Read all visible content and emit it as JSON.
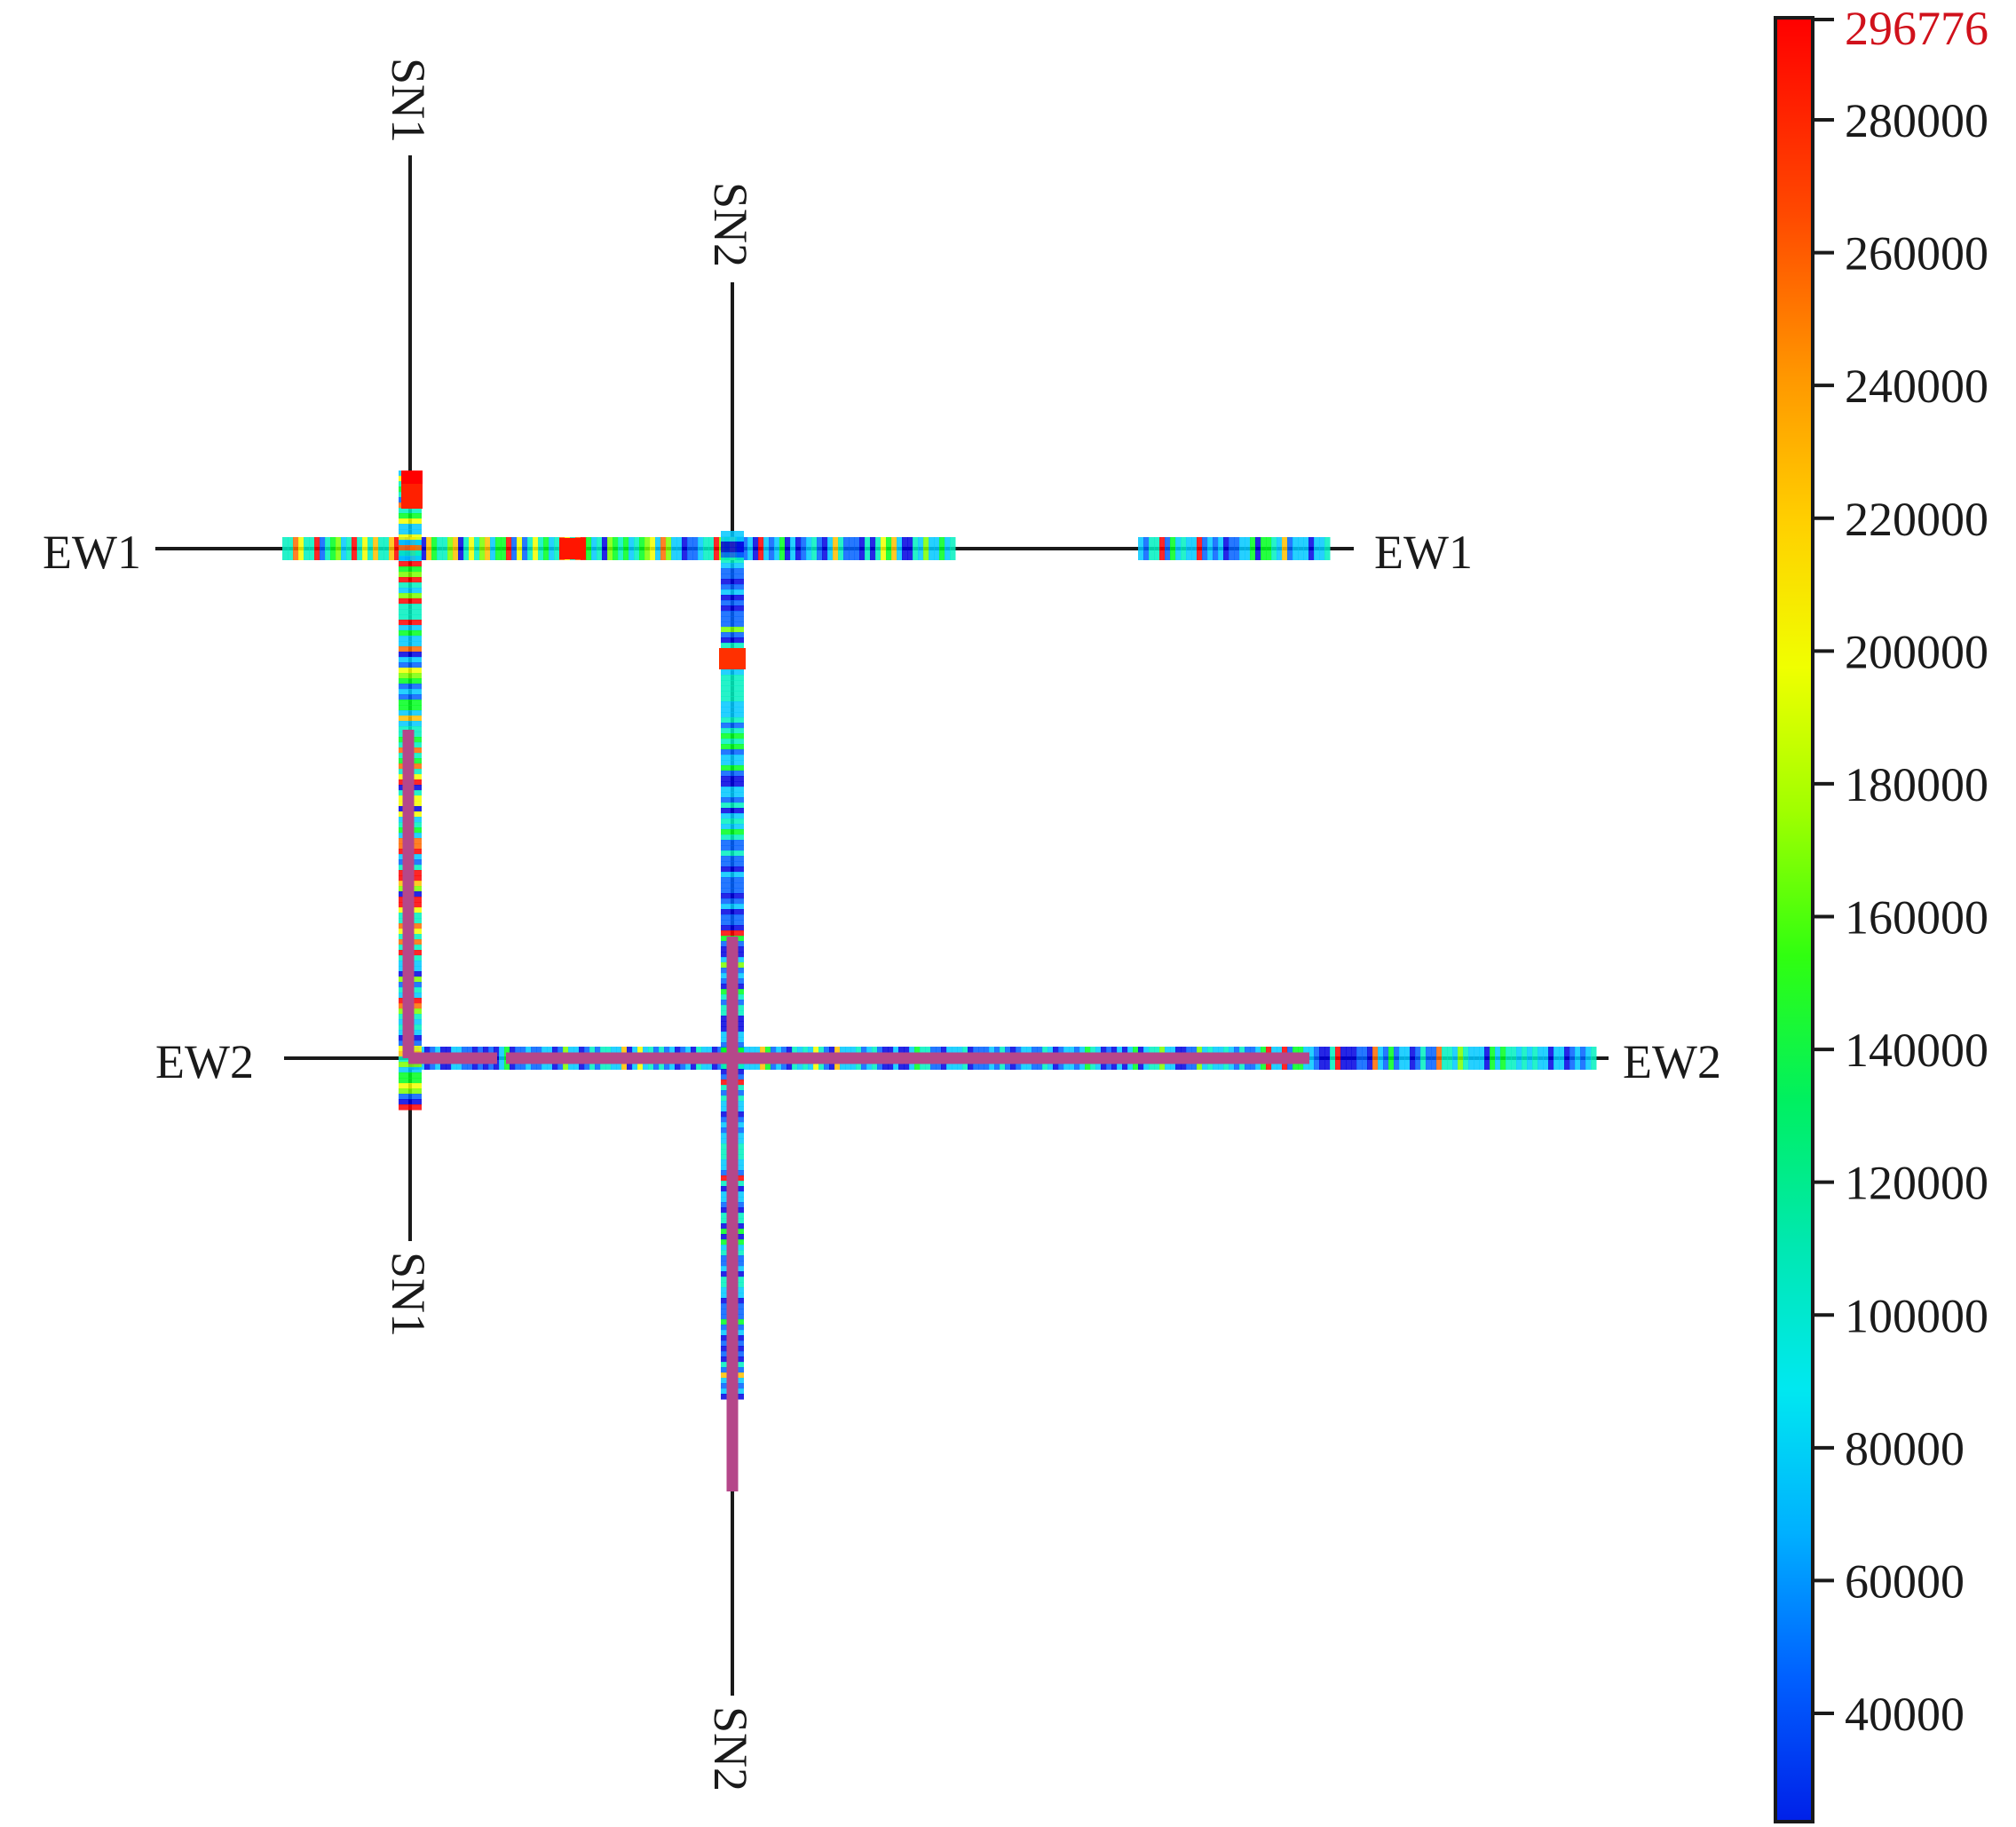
{
  "lines": {
    "ew1": "EW1",
    "ew2": "EW2",
    "sn1": "SN1",
    "sn2": "SN2"
  },
  "colorbar": {
    "max_label": "296776",
    "max_value": 296776,
    "ticks": [
      {
        "value": 280000,
        "label": "280000"
      },
      {
        "value": 260000,
        "label": "260000"
      },
      {
        "value": 240000,
        "label": "240000"
      },
      {
        "value": 220000,
        "label": "220000"
      },
      {
        "value": 200000,
        "label": "200000"
      },
      {
        "value": 180000,
        "label": "180000"
      },
      {
        "value": 160000,
        "label": "160000"
      },
      {
        "value": 140000,
        "label": "140000"
      },
      {
        "value": 120000,
        "label": "120000"
      },
      {
        "value": 100000,
        "label": "100000"
      },
      {
        "value": 80000,
        "label": "80000"
      },
      {
        "value": 60000,
        "label": "60000"
      },
      {
        "value": 40000,
        "label": "40000"
      }
    ],
    "max_label_color": "#d0111b",
    "colors": [
      "#ff0000",
      "#ff6a00",
      "#ffc000",
      "#f2ff00",
      "#7cff00",
      "#00ff20",
      "#00f0c0",
      "#00c8ff",
      "#0060ff",
      "#0000e0"
    ]
  },
  "overlay_color": "#b5478a"
}
